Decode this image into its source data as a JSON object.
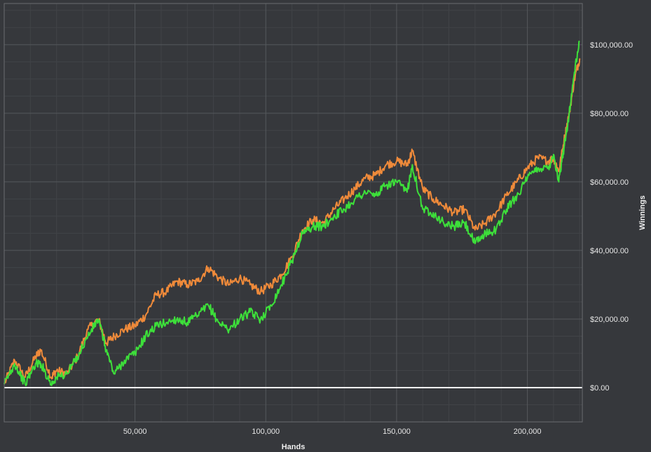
{
  "chart_data": {
    "type": "line",
    "title": "",
    "xlabel": "Hands",
    "ylabel": "Winnings",
    "xlim": [
      0,
      221000
    ],
    "ylim": [
      -10000,
      112000
    ],
    "x_ticks": [
      50000,
      100000,
      150000,
      200000
    ],
    "x_tick_labels": [
      "50,000",
      "100,000",
      "150,000",
      "200,000"
    ],
    "y_ticks": [
      0,
      20000,
      40000,
      60000,
      80000,
      100000
    ],
    "y_tick_labels": [
      "$0.00",
      "$20,000.00",
      "$40,000.00",
      "$60,000.00",
      "$80,000.00",
      "$100,000.00"
    ],
    "grid": true,
    "background": "#36383c",
    "zero_line_color": "#ffffff",
    "series": [
      {
        "color": "#ef8a3a",
        "x": [
          0,
          4000,
          8000,
          12000,
          14000,
          18000,
          20000,
          24000,
          28000,
          32000,
          36000,
          39000,
          42000,
          46000,
          50000,
          54000,
          58000,
          62000,
          66000,
          70000,
          74000,
          78000,
          82000,
          86000,
          90000,
          94000,
          98000,
          102000,
          106000,
          110000,
          114000,
          118000,
          122000,
          126000,
          130000,
          134000,
          138000,
          142000,
          146000,
          150000,
          154000,
          156000,
          160000,
          164000,
          168000,
          172000,
          176000,
          180000,
          184000,
          188000,
          192000,
          196000,
          200000,
          204000,
          208000,
          210000,
          212000,
          214000,
          216000,
          218000,
          220000
        ],
        "y": [
          1000,
          8000,
          3000,
          9000,
          11000,
          3000,
          5000,
          4000,
          9000,
          17000,
          20000,
          13000,
          15000,
          17000,
          18000,
          21000,
          27000,
          28000,
          31000,
          30000,
          31000,
          35000,
          32000,
          30000,
          32000,
          30000,
          28000,
          30000,
          33000,
          38000,
          46000,
          49000,
          48000,
          52000,
          55000,
          58000,
          61000,
          62000,
          65000,
          66000,
          65000,
          69000,
          58000,
          55000,
          53000,
          51000,
          52000,
          46000,
          48000,
          51000,
          56000,
          60000,
          64000,
          67000,
          66000,
          67000,
          63000,
          72000,
          80000,
          90000,
          96000
        ]
      },
      {
        "color": "#3ddf3a",
        "x": [
          0,
          4000,
          8000,
          12000,
          14000,
          18000,
          20000,
          24000,
          28000,
          32000,
          36000,
          39000,
          42000,
          46000,
          50000,
          54000,
          58000,
          62000,
          66000,
          70000,
          74000,
          78000,
          82000,
          86000,
          90000,
          94000,
          98000,
          102000,
          106000,
          110000,
          114000,
          118000,
          122000,
          126000,
          130000,
          134000,
          138000,
          142000,
          146000,
          150000,
          154000,
          156000,
          160000,
          164000,
          168000,
          172000,
          176000,
          180000,
          184000,
          188000,
          192000,
          196000,
          200000,
          204000,
          208000,
          210000,
          212000,
          214000,
          216000,
          218000,
          220000
        ],
        "y": [
          1000,
          7000,
          1000,
          7000,
          7000,
          1000,
          3000,
          4000,
          9000,
          15000,
          20000,
          11000,
          4000,
          8000,
          10000,
          15000,
          18000,
          19000,
          20000,
          19000,
          21000,
          24000,
          19000,
          17000,
          20000,
          22000,
          20000,
          24000,
          30000,
          37000,
          45000,
          47000,
          47000,
          50000,
          52000,
          55000,
          57000,
          56000,
          59000,
          60000,
          57000,
          65000,
          52000,
          51000,
          48000,
          47000,
          48000,
          42000,
          45000,
          46000,
          52000,
          56000,
          61000,
          64000,
          64000,
          68000,
          60000,
          70000,
          80000,
          92000,
          101000
        ]
      }
    ]
  }
}
